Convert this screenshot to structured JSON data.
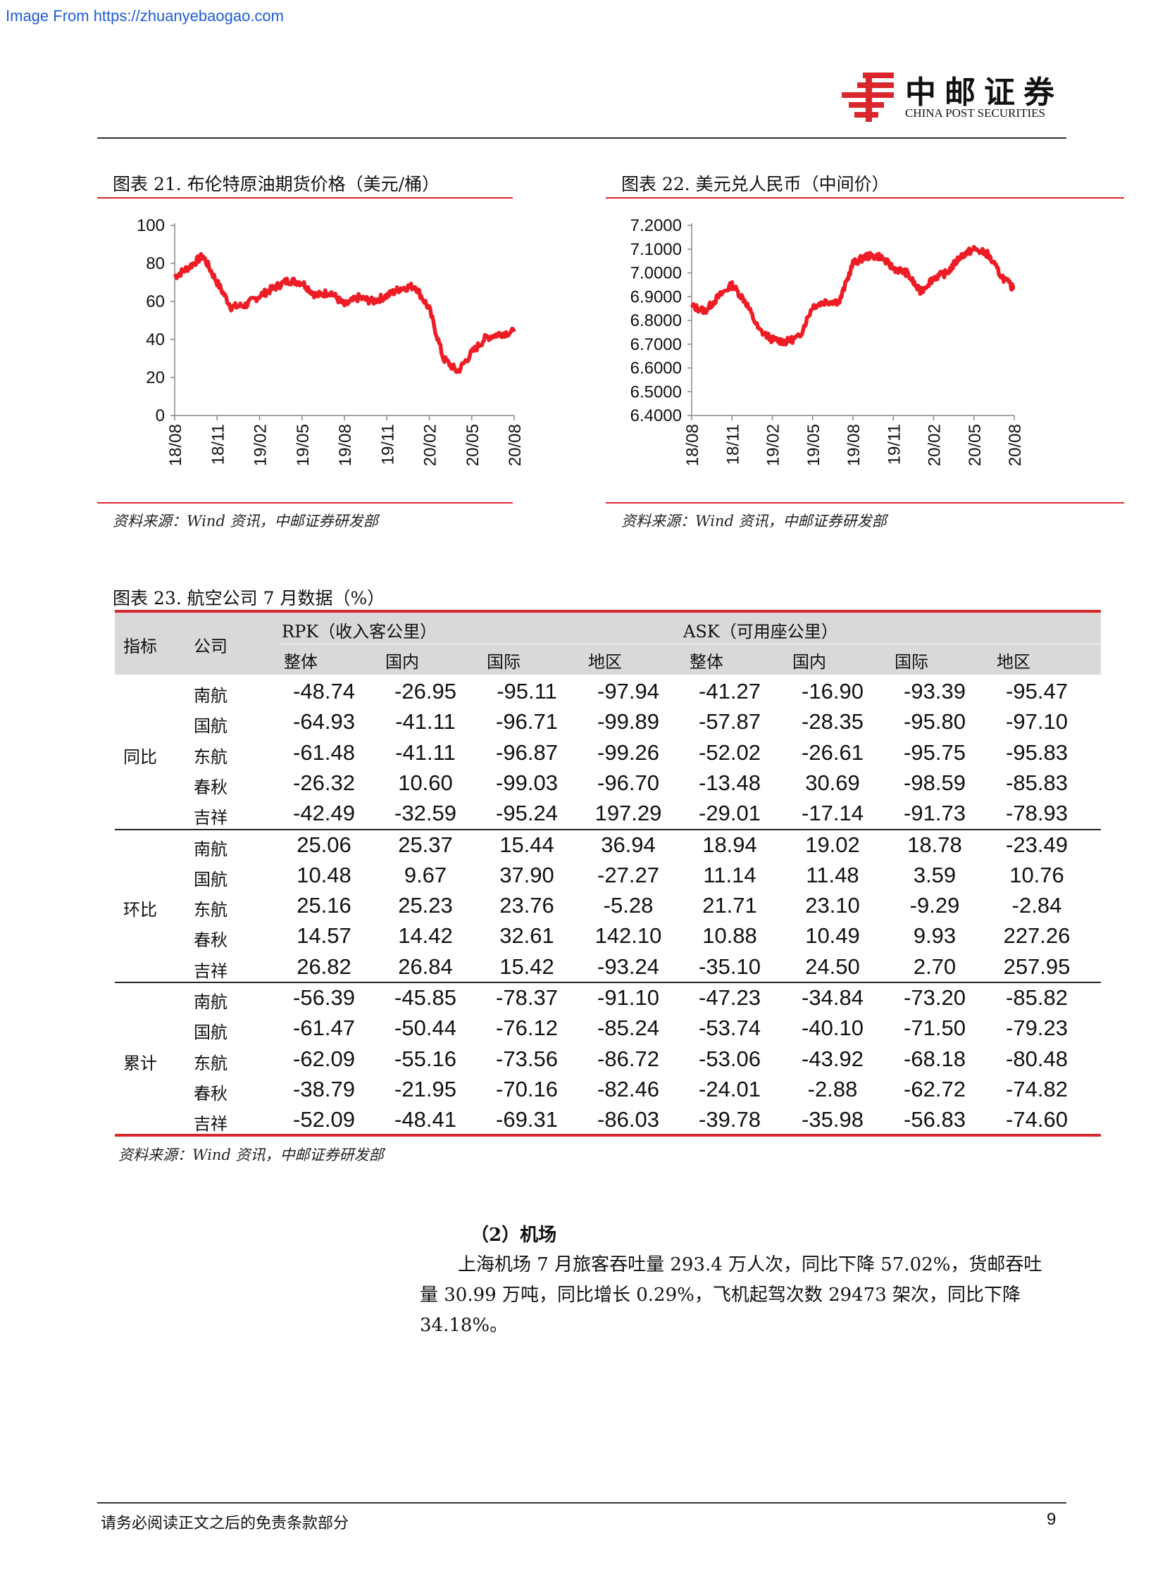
{
  "watermark": "Image From https://zhuanyebaogao.com",
  "logo": {
    "cn": "中邮证券",
    "en": "CHINA POST SECURITIES",
    "icon": "china-post-logo-icon",
    "color": "#d9262b"
  },
  "accent_color": "#d9262b",
  "figure21": {
    "title": "图表 21. 布伦特原油期货价格（美元/桶）",
    "source": "资料来源：Wind 资讯，中邮证券研发部",
    "chart_data": {
      "type": "line",
      "series_color": "#ee1c25",
      "ylim": [
        0,
        100
      ],
      "y_ticks": [
        "100",
        "80",
        "60",
        "40",
        "20",
        "0"
      ],
      "x_ticks": [
        "18/08",
        "18/11",
        "19/02",
        "19/05",
        "19/08",
        "19/11",
        "20/02",
        "20/05",
        "20/08"
      ],
      "x": [
        "2018-08",
        "2018-09",
        "2018-10",
        "2018-11",
        "2018-12",
        "2019-01",
        "2019-02",
        "2019-03",
        "2019-04",
        "2019-05",
        "2019-06",
        "2019-07",
        "2019-08",
        "2019-09",
        "2019-10",
        "2019-11",
        "2019-12",
        "2020-01",
        "2020-02",
        "2020-03",
        "2020-04",
        "2020-05",
        "2020-06",
        "2020-07",
        "2020-08"
      ],
      "values": [
        73,
        78,
        84,
        70,
        57,
        58,
        63,
        67,
        71,
        70,
        63,
        65,
        58,
        62,
        60,
        63,
        67,
        68,
        56,
        30,
        23,
        33,
        41,
        43,
        44
      ]
    }
  },
  "figure22": {
    "title": "图表 22. 美元兑人民币（中间价）",
    "source": "资料来源：Wind 资讯，中邮证券研发部",
    "chart_data": {
      "type": "line",
      "series_color": "#ee1c25",
      "ylim": [
        6.4,
        7.2
      ],
      "y_ticks": [
        "7.2000",
        "7.1000",
        "7.0000",
        "6.9000",
        "6.8000",
        "6.7000",
        "6.6000",
        "6.5000",
        "6.4000"
      ],
      "x_ticks": [
        "18/08",
        "18/11",
        "19/02",
        "19/05",
        "19/08",
        "19/11",
        "20/02",
        "20/05",
        "20/08"
      ],
      "x": [
        "2018-08",
        "2018-09",
        "2018-10",
        "2018-11",
        "2018-12",
        "2019-01",
        "2019-02",
        "2019-03",
        "2019-04",
        "2019-05",
        "2019-06",
        "2019-07",
        "2019-08",
        "2019-09",
        "2019-10",
        "2019-11",
        "2019-12",
        "2020-01",
        "2020-02",
        "2020-03",
        "2020-04",
        "2020-05",
        "2020-06",
        "2020-07",
        "2020-08"
      ],
      "values": [
        6.86,
        6.84,
        6.9,
        6.95,
        6.88,
        6.76,
        6.72,
        6.71,
        6.73,
        6.86,
        6.88,
        6.88,
        7.04,
        7.07,
        7.07,
        7.02,
        7.0,
        6.92,
        6.98,
        7.0,
        7.07,
        7.1,
        7.08,
        6.99,
        6.93
      ]
    }
  },
  "table": {
    "title": "图表 23. 航空公司 7 月数据（%）",
    "source": "资料来源：Wind 资讯，中邮证券研发部",
    "header": {
      "indicator": "指标",
      "company": "公司",
      "group1": "RPK（收入客公里）",
      "group2": "ASK（可用座公里）",
      "subcols": [
        "整体",
        "国内",
        "国际",
        "地区",
        "整体",
        "国内",
        "国际",
        "地区"
      ]
    },
    "groups": [
      {
        "label": "同比",
        "rows": [
          {
            "company": "南航",
            "values": [
              "-48.74",
              "-26.95",
              "-95.11",
              "-97.94",
              "-41.27",
              "-16.90",
              "-93.39",
              "-95.47"
            ]
          },
          {
            "company": "国航",
            "values": [
              "-64.93",
              "-41.11",
              "-96.71",
              "-99.89",
              "-57.87",
              "-28.35",
              "-95.80",
              "-97.10"
            ]
          },
          {
            "company": "东航",
            "values": [
              "-61.48",
              "-41.11",
              "-96.87",
              "-99.26",
              "-52.02",
              "-26.61",
              "-95.75",
              "-95.83"
            ]
          },
          {
            "company": "春秋",
            "values": [
              "-26.32",
              "10.60",
              "-99.03",
              "-96.70",
              "-13.48",
              "30.69",
              "-98.59",
              "-85.83"
            ]
          },
          {
            "company": "吉祥",
            "values": [
              "-42.49",
              "-32.59",
              "-95.24",
              "197.29",
              "-29.01",
              "-17.14",
              "-91.73",
              "-78.93"
            ]
          }
        ]
      },
      {
        "label": "环比",
        "rows": [
          {
            "company": "南航",
            "values": [
              "25.06",
              "25.37",
              "15.44",
              "36.94",
              "18.94",
              "19.02",
              "18.78",
              "-23.49"
            ]
          },
          {
            "company": "国航",
            "values": [
              "10.48",
              "9.67",
              "37.90",
              "-27.27",
              "11.14",
              "11.48",
              "3.59",
              "10.76"
            ]
          },
          {
            "company": "东航",
            "values": [
              "25.16",
              "25.23",
              "23.76",
              "-5.28",
              "21.71",
              "23.10",
              "-9.29",
              "-2.84"
            ]
          },
          {
            "company": "春秋",
            "values": [
              "14.57",
              "14.42",
              "32.61",
              "142.10",
              "10.88",
              "10.49",
              "9.93",
              "227.26"
            ]
          },
          {
            "company": "吉祥",
            "values": [
              "26.82",
              "26.84",
              "15.42",
              "-93.24",
              "-35.10",
              "24.50",
              "2.70",
              "257.95"
            ]
          }
        ]
      },
      {
        "label": "累计",
        "rows": [
          {
            "company": "南航",
            "values": [
              "-56.39",
              "-45.85",
              "-78.37",
              "-91.10",
              "-47.23",
              "-34.84",
              "-73.20",
              "-85.82"
            ]
          },
          {
            "company": "国航",
            "values": [
              "-61.47",
              "-50.44",
              "-76.12",
              "-85.24",
              "-53.74",
              "-40.10",
              "-71.50",
              "-79.23"
            ]
          },
          {
            "company": "东航",
            "values": [
              "-62.09",
              "-55.16",
              "-73.56",
              "-86.72",
              "-53.06",
              "-43.92",
              "-68.18",
              "-80.48"
            ]
          },
          {
            "company": "春秋",
            "values": [
              "-38.79",
              "-21.95",
              "-70.16",
              "-82.46",
              "-24.01",
              "-2.88",
              "-62.72",
              "-74.82"
            ]
          },
          {
            "company": "吉祥",
            "values": [
              "-52.09",
              "-48.41",
              "-69.31",
              "-86.03",
              "-39.78",
              "-35.98",
              "-56.83",
              "-74.60"
            ]
          }
        ]
      }
    ]
  },
  "section": {
    "heading": "（2）机场",
    "lines": [
      "上海机场 7 月旅客吞吐量 293.4 万人次，同比下降 57.02%，货邮吞吐",
      "量 30.99 万吨，同比增长 0.29%，飞机起驾次数 29473 架次，同比下降",
      "34.18%。"
    ]
  },
  "footer": {
    "disclaimer": "请务必阅读正文之后的免责条款部分",
    "page": "9"
  }
}
